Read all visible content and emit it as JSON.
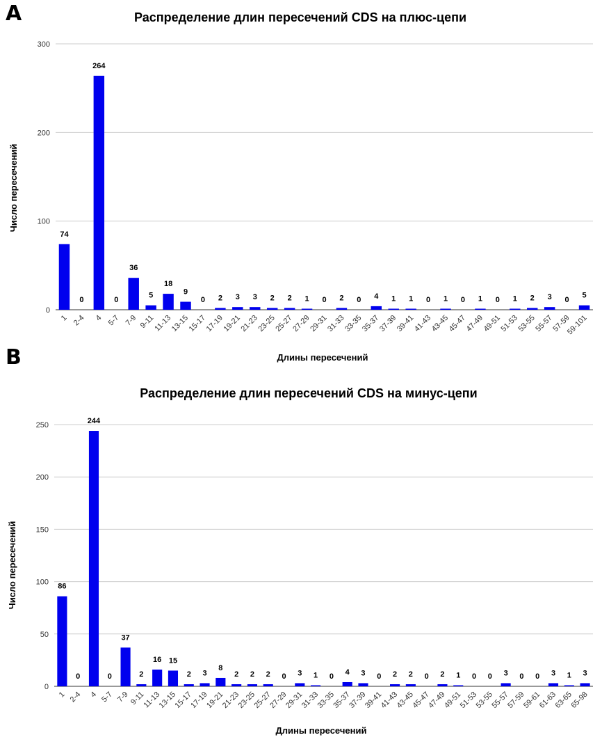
{
  "colors": {
    "bar": "#0000ee",
    "grid": "#cccccc",
    "text": "#000000"
  },
  "chart_data": [
    {
      "panel": "A",
      "type": "bar",
      "title": "Распределение длин пересечений CDS на плюс-цепи",
      "xlabel": "Длины пересечений",
      "ylabel": "Число пересечений",
      "ylim": [
        0,
        300
      ],
      "yticks": [
        0,
        100,
        200,
        300
      ],
      "categories": [
        "1",
        "2-4",
        "4",
        "5-7",
        "7-9",
        "9-11",
        "11-13",
        "13-15",
        "15-17",
        "17-19",
        "19-21",
        "21-23",
        "23-25",
        "25-27",
        "27-29",
        "29-31",
        "31-33",
        "33-35",
        "35-37",
        "37-39",
        "39-41",
        "41-43",
        "43-45",
        "45-47",
        "47-49",
        "49-51",
        "51-53",
        "53-55",
        "55-57",
        "57-59",
        "59-101"
      ],
      "values": [
        74,
        0,
        264,
        0,
        36,
        5,
        18,
        9,
        0,
        2,
        3,
        3,
        2,
        2,
        1,
        0,
        2,
        0,
        4,
        1,
        1,
        0,
        1,
        0,
        1,
        0,
        1,
        2,
        3,
        0,
        5
      ]
    },
    {
      "panel": "B",
      "type": "bar",
      "title": "Распределение длин пересечений CDS на минус-цепи",
      "xlabel": "Длины пересечений",
      "ylabel": "Число пересечений",
      "ylim": [
        0,
        250
      ],
      "yticks": [
        0,
        50,
        100,
        150,
        200,
        250
      ],
      "categories": [
        "1",
        "2-4",
        "4",
        "5-7",
        "7-9",
        "9-11",
        "11-13",
        "13-15",
        "15-17",
        "17-19",
        "19-21",
        "21-23",
        "23-25",
        "25-27",
        "27-29",
        "29-31",
        "31-33",
        "33-35",
        "35-37",
        "37-39",
        "39-41",
        "41-43",
        "43-45",
        "45-47",
        "47-49",
        "49-51",
        "51-53",
        "53-55",
        "55-57",
        "57-59",
        "59-61",
        "61-63",
        "63-65",
        "65-98"
      ],
      "values": [
        86,
        0,
        244,
        0,
        37,
        2,
        16,
        15,
        2,
        3,
        8,
        2,
        2,
        2,
        0,
        3,
        1,
        0,
        4,
        3,
        0,
        2,
        2,
        0,
        2,
        1,
        0,
        0,
        3,
        0,
        0,
        3,
        1,
        3
      ]
    }
  ]
}
